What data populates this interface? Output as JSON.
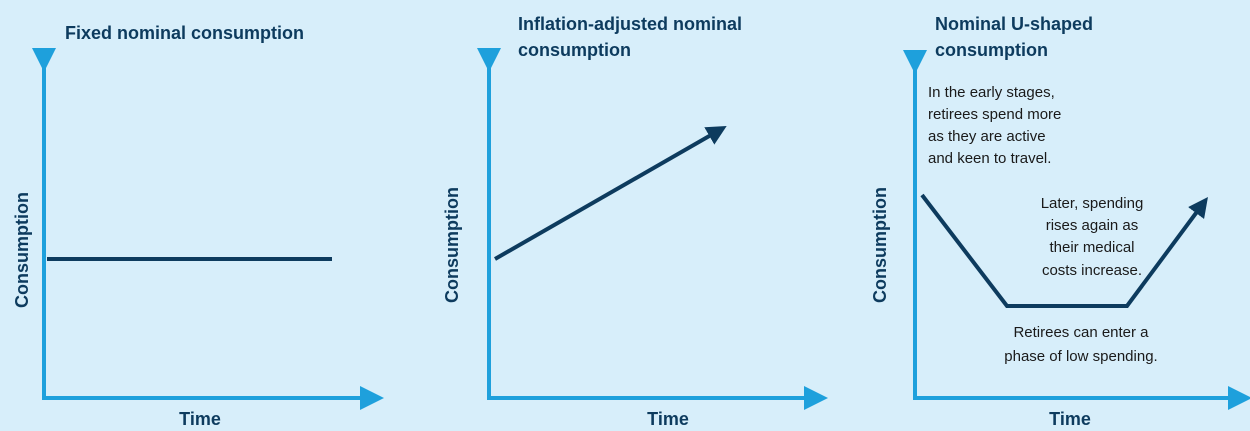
{
  "panels": [
    {
      "title": [
        "Fixed nominal consumption"
      ],
      "y_label": "Consumption",
      "x_label": "Time",
      "annotations": []
    },
    {
      "title": [
        "Inflation-adjusted nominal",
        "consumption"
      ],
      "y_label": "Consumption",
      "x_label": "Time",
      "annotations": []
    },
    {
      "title": [
        "Nominal U-shaped",
        "consumption"
      ],
      "y_label": "Consumption",
      "x_label": "Time",
      "annotations": [
        [
          "In the early stages,",
          "retirees spend more",
          "as they are active",
          "and keen to travel."
        ],
        [
          "Later, spending",
          "rises again as",
          "their medical",
          "costs increase."
        ],
        [
          "Retirees can enter a",
          "phase of low spending."
        ]
      ]
    }
  ]
}
